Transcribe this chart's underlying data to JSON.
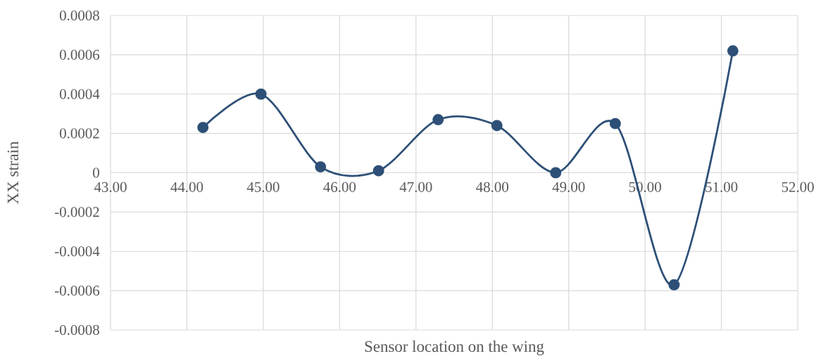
{
  "chart_data": {
    "type": "line",
    "xlabel": "Sensor location on the wing",
    "ylabel": "XX strain",
    "series": [
      {
        "color": "#2e5077",
        "x": [
          44.21,
          44.97,
          45.75,
          46.51,
          47.29,
          48.06,
          48.83,
          49.61,
          50.38,
          51.15
        ],
        "values": [
          0.00023,
          0.0004,
          3e-05,
          1e-05,
          0.00027,
          0.00024,
          0.0,
          0.00025,
          -0.00057,
          0.00062
        ]
      }
    ],
    "xlim": [
      43,
      52
    ],
    "xticks": [
      {
        "value": 43,
        "label": "43.00"
      },
      {
        "value": 44,
        "label": "44.00"
      },
      {
        "value": 45,
        "label": "45.00"
      },
      {
        "value": 46,
        "label": "46.00"
      },
      {
        "value": 47,
        "label": "47.00"
      },
      {
        "value": 48,
        "label": "48.00"
      },
      {
        "value": 49,
        "label": "49.00"
      },
      {
        "value": 50,
        "label": "50.00"
      },
      {
        "value": 51,
        "label": "51.00"
      },
      {
        "value": 52,
        "label": "52.00"
      }
    ],
    "ylim": [
      -0.0008,
      0.0008
    ],
    "yticks": [
      -0.0008,
      -0.0006,
      -0.0004,
      -0.0002,
      0,
      0.0002,
      0.0004,
      0.0006,
      0.0008
    ],
    "grid": true,
    "marker": "circle",
    "line_style": "solid"
  }
}
